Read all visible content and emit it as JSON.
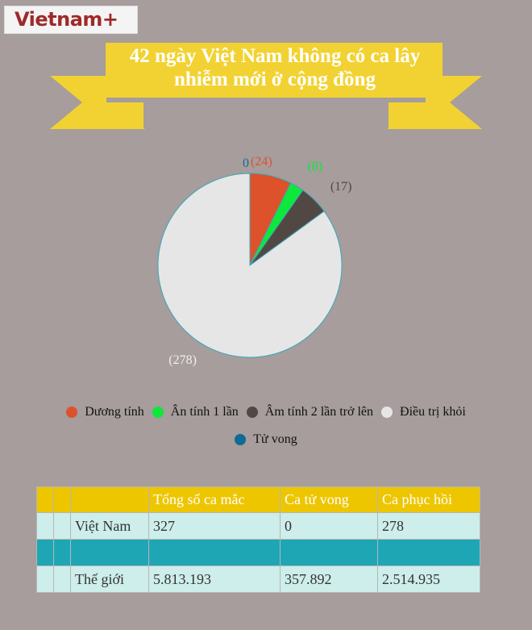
{
  "logo": {
    "text": "Vietnam+"
  },
  "title": {
    "line1": "42 ngày Việt Nam không có ca lây",
    "line2": "nhiễm mới ở cộng đồng"
  },
  "colors": {
    "background": "#a69d9c",
    "banner": "#f2d232",
    "header": "#edc600",
    "row": "#cdeeea",
    "separator": "#1fa6b5"
  },
  "chart_data": {
    "type": "pie",
    "start": "top, clockwise",
    "slices": [
      {
        "name": "Tử vong",
        "value": 0,
        "label": "0",
        "color": "#0f6a96"
      },
      {
        "name": "Dương tính",
        "value": 24,
        "label": "(24)",
        "color": "#dd522b"
      },
      {
        "name": "Ân tính 1 lần",
        "value": 8,
        "label": "(8)",
        "color": "#0de83a"
      },
      {
        "name": "Âm tính 2 lần trở lên",
        "value": 17,
        "label": "(17)",
        "color": "#524843"
      },
      {
        "name": "Điều trị khỏi",
        "value": 278,
        "label": "(278)",
        "color": "#e6e6e6"
      }
    ],
    "legend_order": [
      1,
      2,
      3,
      4,
      0
    ],
    "legend_placement": "bottom"
  },
  "table": {
    "headers": [
      "",
      "",
      "",
      "Tổng số ca mắc",
      "Ca tử vong",
      "Ca phục hồi"
    ],
    "rows": [
      [
        "",
        "",
        "Việt Nam",
        "327",
        "0",
        "278"
      ],
      [
        "",
        "",
        "",
        "",
        "",
        ""
      ],
      [
        "",
        "",
        "Thế giới",
        "5.813.193",
        "357.892",
        "2.514.935"
      ]
    ]
  }
}
